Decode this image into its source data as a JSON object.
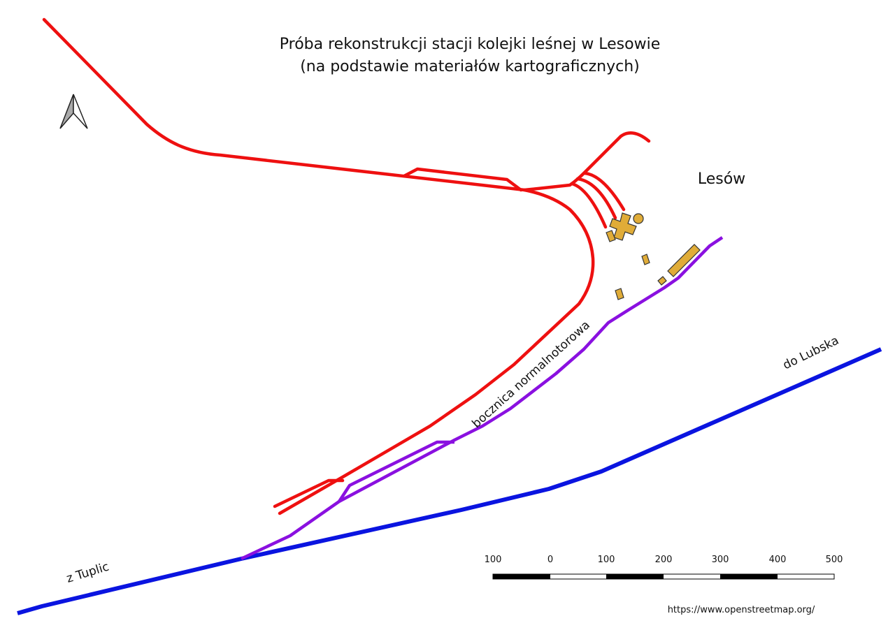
{
  "title": [
    "Próba rekonstrukcji stacji kolejki leśnej w Lesowie",
    "(na podstawie materiałów kartograficznych)"
  ],
  "labels": {
    "town": "Lesów",
    "siding": "bocznica normalnotorowa",
    "to": "do Lubska",
    "from": "z Tuplic"
  },
  "scale": {
    "labels": [
      100,
      0,
      100,
      200,
      300,
      400,
      500
    ]
  },
  "source": "https://www.openstreetmap.org/"
}
